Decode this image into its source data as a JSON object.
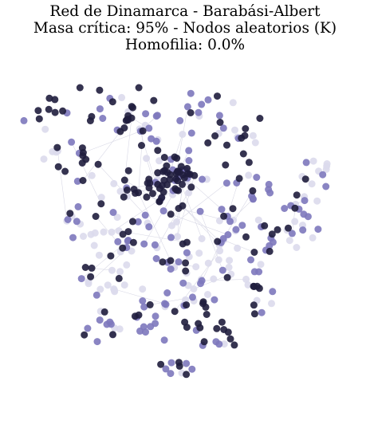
{
  "figure": {
    "title_line1": "Red de Dinamarca - Barabási-Albert",
    "title_line2": "Masa crítica: 95% - Nodos aleatorios (K)",
    "title_line3": "Homofilia: 0.0%"
  },
  "graph": {
    "node_colors": {
      "dark": "#1f1d3d",
      "medium": "#7d78bd",
      "light": "#dcdaec"
    },
    "edge_color": "#d9d9e6"
  }
}
